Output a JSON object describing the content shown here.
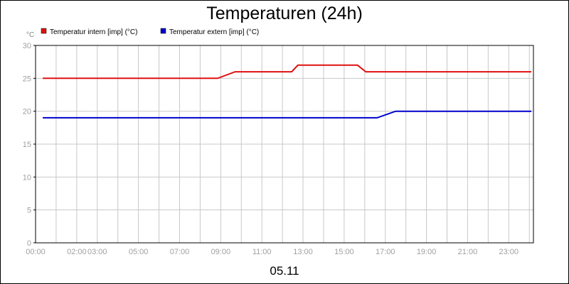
{
  "chart_data": {
    "type": "line",
    "title": "Temperaturen (24h)",
    "ylabel": "°C",
    "date_label": "05.11",
    "ylim": [
      0,
      30
    ],
    "y_ticks": [
      0,
      5,
      10,
      15,
      20,
      25,
      30
    ],
    "xlim_hours": [
      0,
      24.2
    ],
    "x_tick_labels": [
      {
        "hour": 0,
        "label": "00:00"
      },
      {
        "hour": 2,
        "label": "02:00"
      },
      {
        "hour": 3,
        "label": "03:00"
      },
      {
        "hour": 5,
        "label": "05:00"
      },
      {
        "hour": 7,
        "label": "07:00"
      },
      {
        "hour": 9,
        "label": "09:00"
      },
      {
        "hour": 11,
        "label": "11:00"
      },
      {
        "hour": 13,
        "label": "13:00"
      },
      {
        "hour": 15,
        "label": "15:00"
      },
      {
        "hour": 17,
        "label": "17:00"
      },
      {
        "hour": 19,
        "label": "19:00"
      },
      {
        "hour": 21,
        "label": "21:00"
      },
      {
        "hour": 23,
        "label": "23:00"
      }
    ],
    "x_gridlines_hours": [
      1,
      2,
      3,
      4,
      5,
      6,
      7,
      8,
      9,
      10,
      11,
      12,
      13,
      14,
      15,
      16,
      17,
      18,
      19,
      20,
      21,
      22,
      23,
      24
    ],
    "grid": true,
    "legend_position": "top-left",
    "series": [
      {
        "name": "Temperatur intern [imp] (°C)",
        "color": "#e01010",
        "x": [
          0.35,
          8.85,
          9.7,
          12.45,
          12.75,
          15.65,
          16.05,
          24.1
        ],
        "y": [
          25,
          25,
          26,
          26,
          27,
          27,
          26,
          26
        ]
      },
      {
        "name": "Temperatur extern [imp] (°C)",
        "color": "#0000cc",
        "x": [
          0.35,
          16.6,
          17.5,
          24.1
        ],
        "y": [
          19,
          19,
          20,
          20
        ]
      }
    ]
  }
}
